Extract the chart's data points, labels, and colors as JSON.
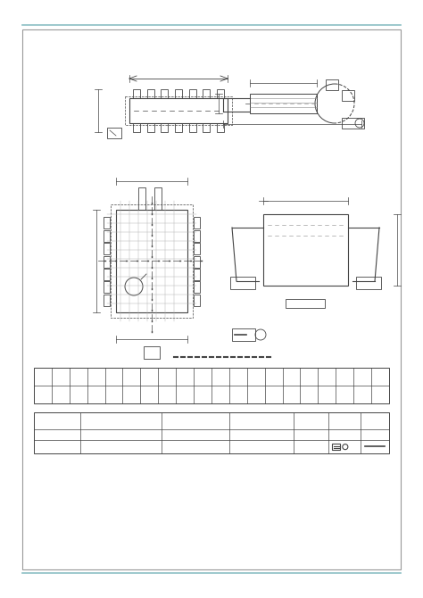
{
  "bg_color": "#ffffff",
  "border_color": "#999999",
  "line_color": "#444444",
  "teal_line_color": "#8bbfc5",
  "fig_width": 4.74,
  "fig_height": 6.7,
  "dpi": 100
}
